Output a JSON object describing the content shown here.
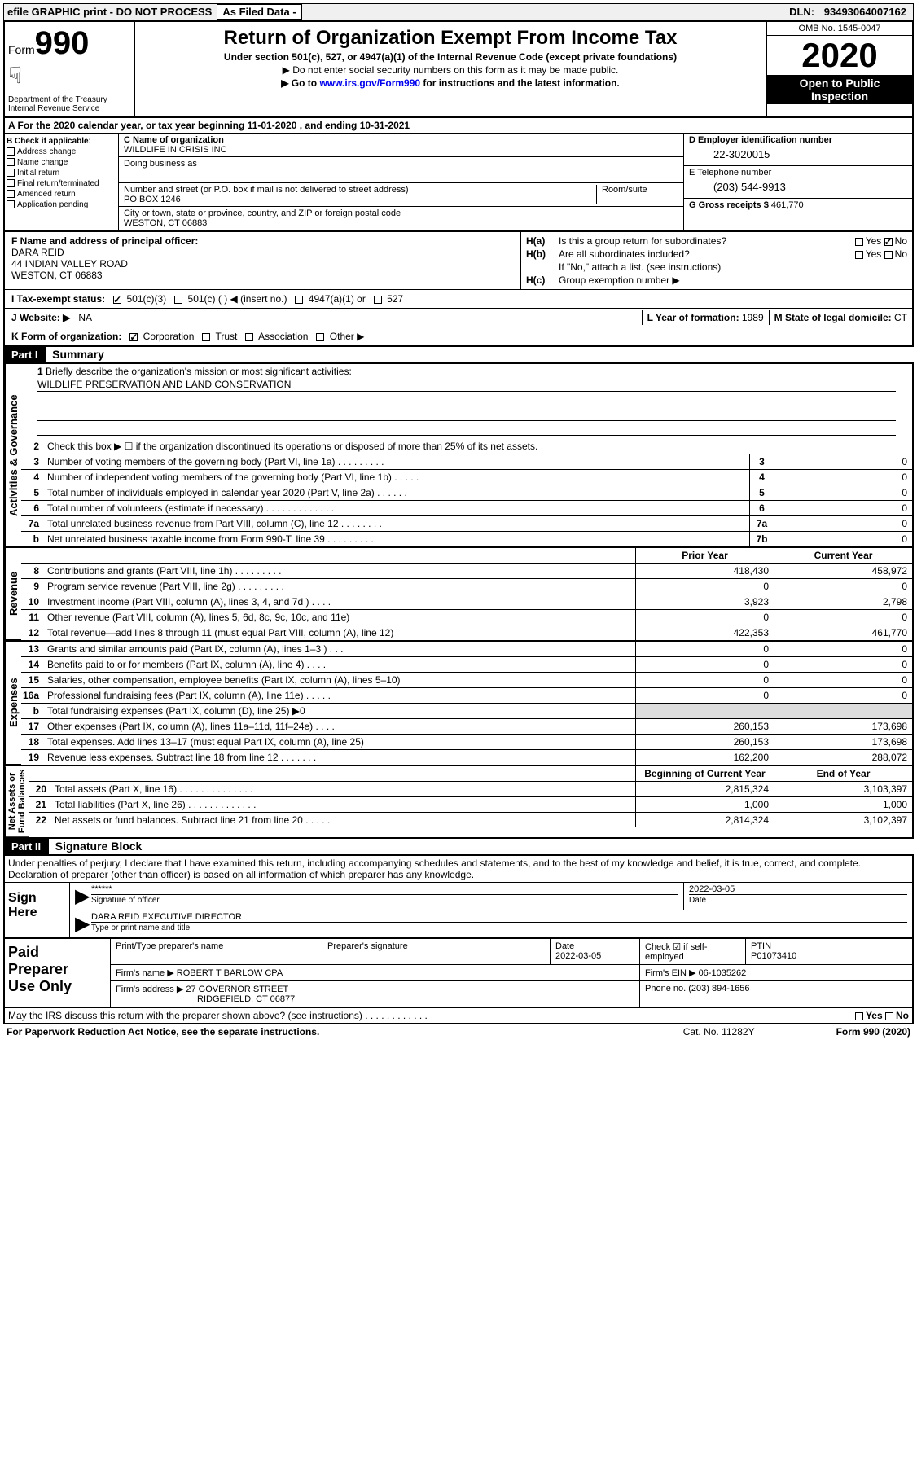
{
  "topbar": {
    "efile": "efile GRAPHIC print - DO NOT PROCESS",
    "asfiled": "As Filed Data -",
    "dln_label": "DLN:",
    "dln": "93493064007162"
  },
  "header": {
    "form_word": "Form",
    "form_num": "990",
    "dept": "Department of the Treasury\nInternal Revenue Service",
    "title": "Return of Organization Exempt From Income Tax",
    "subtitle": "Under section 501(c), 527, or 4947(a)(1) of the Internal Revenue Code (except private foundations)",
    "note1": "▶ Do not enter social security numbers on this form as it may be made public.",
    "note2_pre": "▶ Go to ",
    "note2_link": "www.irs.gov/Form990",
    "note2_post": " for instructions and the latest information.",
    "omb": "OMB No. 1545-0047",
    "year": "2020",
    "open": "Open to Public\nInspection"
  },
  "row_a": "A  For the 2020 calendar year, or tax year beginning 11-01-2020   , and ending 10-31-2021",
  "b": {
    "label": "B Check if applicable:",
    "items": [
      "Address change",
      "Name change",
      "Initial return",
      "Final return/terminated",
      "Amended return",
      "Application pending"
    ]
  },
  "c": {
    "name_label": "C Name of organization",
    "name": "WILDLIFE IN CRISIS INC",
    "dba_label": "Doing business as",
    "street_label": "Number and street (or P.O. box if mail is not delivered to street address)",
    "street": "PO BOX 1246",
    "room_label": "Room/suite",
    "city_label": "City or town, state or province, country, and ZIP or foreign postal code",
    "city": "WESTON, CT  06883"
  },
  "d": {
    "ein_label": "D Employer identification number",
    "ein": "22-3020015",
    "tel_label": "E Telephone number",
    "tel": "(203) 544-9913",
    "gross_label": "G Gross receipts $",
    "gross": "461,770"
  },
  "f": {
    "label": "F  Name and address of principal officer:",
    "name": "DARA REID",
    "addr1": "44 INDIAN VALLEY ROAD",
    "addr2": "WESTON, CT  06883"
  },
  "h": {
    "ha": "Is this a group return for subordinates?",
    "hb": "Are all subordinates included?",
    "hb_note": "If \"No,\" attach a list. (see instructions)",
    "hc": "Group exemption number ▶",
    "yes": "Yes",
    "no": "No"
  },
  "i": {
    "label": "I  Tax-exempt status:",
    "opts": [
      "501(c)(3)",
      "501(c) (  ) ◀ (insert no.)",
      "4947(a)(1) or",
      "527"
    ]
  },
  "j": {
    "label": "J  Website: ▶",
    "val": "NA"
  },
  "k": {
    "label": "K Form of organization:",
    "opts": [
      "Corporation",
      "Trust",
      "Association",
      "Other ▶"
    ]
  },
  "lm": {
    "l_label": "L Year of formation:",
    "l_val": "1989",
    "m_label": "M State of legal domicile:",
    "m_val": "CT"
  },
  "part1": {
    "tag": "Part I",
    "title": "Summary",
    "vert1": "Activities & Governance",
    "vert2": "Revenue",
    "vert3": "Expenses",
    "vert4": "Net Assets or\nFund Balances",
    "line1_label": "Briefly describe the organization's mission or most significant activities:",
    "line1_text": "WILDLIFE PRESERVATION AND LAND CONSERVATION",
    "line2": "Check this box ▶ ☐ if the organization discontinued its operations or disposed of more than 25% of its net assets.",
    "lines_gov": [
      {
        "n": "3",
        "t": "Number of voting members of the governing body (Part VI, line 1a)  .   .   .   .   .   .   .   .   .",
        "box": "3",
        "v": "0"
      },
      {
        "n": "4",
        "t": "Number of independent voting members of the governing body (Part VI, line 1b)   .   .   .   .   .",
        "box": "4",
        "v": "0"
      },
      {
        "n": "5",
        "t": "Total number of individuals employed in calendar year 2020 (Part V, line 2a)   .   .   .   .   .   .",
        "box": "5",
        "v": "0"
      },
      {
        "n": "6",
        "t": "Total number of volunteers (estimate if necessary)  .   .   .   .   .   .   .   .   .   .   .   .   .",
        "box": "6",
        "v": "0"
      },
      {
        "n": "7a",
        "t": "Total unrelated business revenue from Part VIII, column (C), line 12   .   .   .   .   .   .   .   .",
        "box": "7a",
        "v": "0"
      },
      {
        "n": "b",
        "t": "Net unrelated business taxable income from Form 990-T, line 39   .   .   .   .   .   .   .   .   .",
        "box": "7b",
        "v": "0"
      }
    ],
    "col_prior": "Prior Year",
    "col_current": "Current Year",
    "lines_rev": [
      {
        "n": "8",
        "t": "Contributions and grants (Part VIII, line 1h)   .   .   .   .   .   .   .   .   .",
        "v1": "418,430",
        "v2": "458,972"
      },
      {
        "n": "9",
        "t": "Program service revenue (Part VIII, line 2g)   .   .   .   .   .   .   .   .   .",
        "v1": "0",
        "v2": "0"
      },
      {
        "n": "10",
        "t": "Investment income (Part VIII, column (A), lines 3, 4, and 7d )   .   .   .   .",
        "v1": "3,923",
        "v2": "2,798"
      },
      {
        "n": "11",
        "t": "Other revenue (Part VIII, column (A), lines 5, 6d, 8c, 9c, 10c, and 11e)",
        "v1": "0",
        "v2": "0"
      },
      {
        "n": "12",
        "t": "Total revenue—add lines 8 through 11 (must equal Part VIII, column (A), line 12)",
        "v1": "422,353",
        "v2": "461,770"
      }
    ],
    "lines_exp": [
      {
        "n": "13",
        "t": "Grants and similar amounts paid (Part IX, column (A), lines 1–3 )  .   .   .",
        "v1": "0",
        "v2": "0"
      },
      {
        "n": "14",
        "t": "Benefits paid to or for members (Part IX, column (A), line 4)   .   .   .   .",
        "v1": "0",
        "v2": "0"
      },
      {
        "n": "15",
        "t": "Salaries, other compensation, employee benefits (Part IX, column (A), lines 5–10)",
        "v1": "0",
        "v2": "0"
      },
      {
        "n": "16a",
        "t": "Professional fundraising fees (Part IX, column (A), line 11e)   .   .   .   .   .",
        "v1": "0",
        "v2": "0"
      },
      {
        "n": "b",
        "t": "Total fundraising expenses (Part IX, column (D), line 25) ▶0",
        "v1": "",
        "v2": "",
        "shade": true
      },
      {
        "n": "17",
        "t": "Other expenses (Part IX, column (A), lines 11a–11d, 11f–24e)   .   .   .   .",
        "v1": "260,153",
        "v2": "173,698"
      },
      {
        "n": "18",
        "t": "Total expenses. Add lines 13–17 (must equal Part IX, column (A), line 25)",
        "v1": "260,153",
        "v2": "173,698"
      },
      {
        "n": "19",
        "t": "Revenue less expenses. Subtract line 18 from line 12  .   .   .   .   .   .   .",
        "v1": "162,200",
        "v2": "288,072"
      }
    ],
    "col_beg": "Beginning of Current Year",
    "col_end": "End of Year",
    "lines_net": [
      {
        "n": "20",
        "t": "Total assets (Part X, line 16)   .   .   .   .   .   .   .   .   .   .   .   .   .   .",
        "v1": "2,815,324",
        "v2": "3,103,397"
      },
      {
        "n": "21",
        "t": "Total liabilities (Part X, line 26)  .   .   .   .   .   .   .   .   .   .   .   .   .",
        "v1": "1,000",
        "v2": "1,000"
      },
      {
        "n": "22",
        "t": "Net assets or fund balances. Subtract line 21 from line 20  .   .   .   .   .",
        "v1": "2,814,324",
        "v2": "3,102,397"
      }
    ]
  },
  "part2": {
    "tag": "Part II",
    "title": "Signature Block",
    "intro": "Under penalties of perjury, I declare that I have examined this return, including accompanying schedules and statements, and to the best of my knowledge and belief, it is true, correct, and complete. Declaration of preparer (other than officer) is based on all information of which preparer has any knowledge.",
    "sign_here": "Sign\nHere",
    "sig_stars": "******",
    "sig_of_officer": "Signature of officer",
    "sig_date": "2022-03-05",
    "date_lbl": "Date",
    "officer_name": "DARA REID  EXECUTIVE DIRECTOR",
    "type_name": "Type or print name and title",
    "paid": "Paid\nPreparer\nUse Only",
    "prep_name_lbl": "Print/Type preparer's name",
    "prep_sig_lbl": "Preparer's signature",
    "prep_date": "2022-03-05",
    "check_lbl": "Check ☑ if self-employed",
    "ptin_lbl": "PTIN",
    "ptin": "P01073410",
    "firm_name_lbl": "Firm's name    ▶",
    "firm_name": "ROBERT T BARLOW CPA",
    "firm_ein_lbl": "Firm's EIN ▶",
    "firm_ein": "06-1035262",
    "firm_addr_lbl": "Firm's address ▶",
    "firm_addr1": "27 GOVERNOR STREET",
    "firm_addr2": "RIDGEFIELD, CT  06877",
    "phone_lbl": "Phone no.",
    "phone": "(203) 894-1656"
  },
  "footer": {
    "q": "May the IRS discuss this return with the preparer shown above? (see instructions)   .   .   .   .   .   .   .   .   .   .   .   .",
    "paperwork": "For Paperwork Reduction Act Notice, see the separate instructions.",
    "cat": "Cat. No. 11282Y",
    "form": "Form 990 (2020)"
  }
}
